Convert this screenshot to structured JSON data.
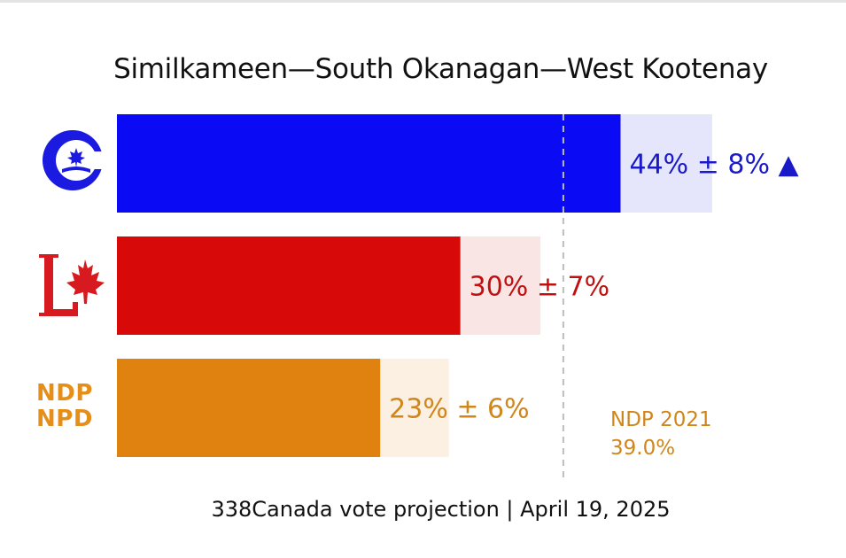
{
  "title": "Similkameen—South Okanagan—West Kootenay",
  "footer": "338Canada vote projection | April 19, 2025",
  "reference": {
    "line1": "NDP 2021",
    "line2": "39.0%"
  },
  "logos": {
    "ndp_line1": "NDP",
    "ndp_line2": "NPD"
  },
  "chart_data": {
    "type": "bar",
    "orientation": "horizontal",
    "title": "Similkameen—South Okanagan—West Kootenay",
    "categories": [
      "Conservative",
      "Liberal",
      "NDP"
    ],
    "series": [
      {
        "values": [
          44,
          30,
          23
        ],
        "margins": [
          8,
          7,
          6
        ],
        "labels": [
          "44% ± 8% ▲",
          "30% ± 7%",
          "23% ± 6%"
        ]
      }
    ],
    "reference_line": {
      "value": 39.0,
      "label": "NDP 2021 39.0%"
    },
    "xlim": [
      0,
      63
    ],
    "colors": {
      "Conservative": {
        "bar": "#0a0af5",
        "range": "#e5e5fb",
        "text": "#1a1ac8"
      },
      "Liberal": {
        "bar": "#d70909",
        "range": "#fae5e5",
        "text": "#c01010"
      },
      "NDP": {
        "bar": "#e0820f",
        "range": "#fcf0e3",
        "text": "#d0861a"
      }
    },
    "grid": false,
    "legend": "none"
  }
}
